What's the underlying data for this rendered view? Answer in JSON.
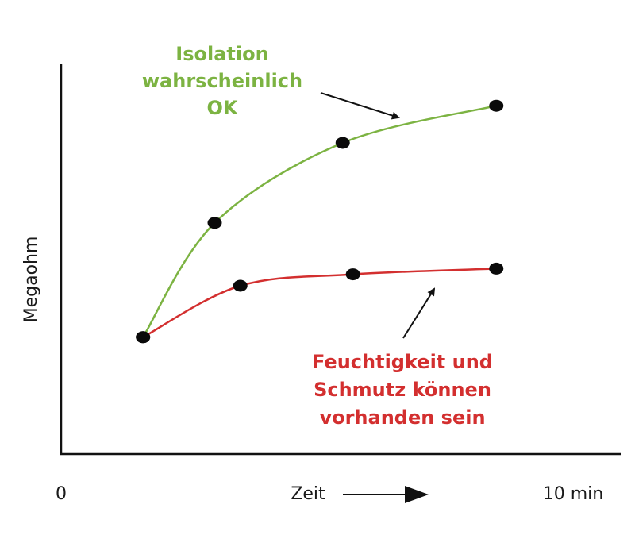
{
  "chart_data": {
    "type": "line",
    "ylabel": "Megaohm",
    "x_axis": {
      "label": "Zeit",
      "tick_labels": [
        "0",
        "10 min"
      ],
      "range": [
        0,
        10
      ]
    },
    "series": [
      {
        "color": "#7cb342",
        "points": [
          {
            "x": 1.6,
            "y": 12
          },
          {
            "x": 3.0,
            "y": 52
          },
          {
            "x": 5.5,
            "y": 80
          },
          {
            "x": 8.5,
            "y": 93
          }
        ]
      },
      {
        "color": "#d32f2f",
        "points": [
          {
            "x": 1.6,
            "y": 12
          },
          {
            "x": 3.5,
            "y": 30
          },
          {
            "x": 5.7,
            "y": 34
          },
          {
            "x": 8.5,
            "y": 36
          }
        ]
      }
    ],
    "annotations": [
      {
        "lines": [
          "Isolation",
          "wahrscheinlich",
          "OK"
        ],
        "color": "#7cb342",
        "series": 0
      },
      {
        "lines": [
          "Feuchtigkeit und",
          "Schmutz können",
          "vorhanden sein"
        ],
        "color": "#d32f2f",
        "series": 1
      }
    ]
  }
}
